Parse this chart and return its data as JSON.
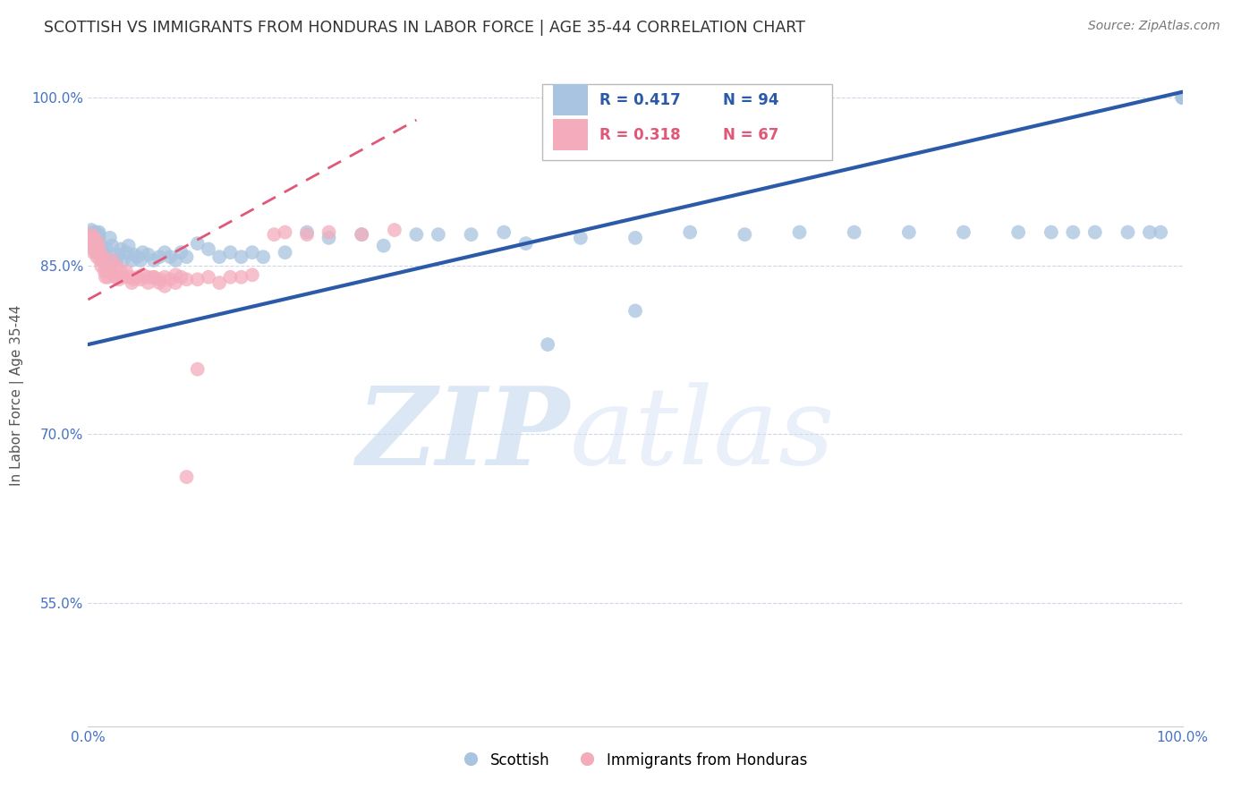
{
  "title": "SCOTTISH VS IMMIGRANTS FROM HONDURAS IN LABOR FORCE | AGE 35-44 CORRELATION CHART",
  "source": "Source: ZipAtlas.com",
  "ylabel": "In Labor Force | Age 35-44",
  "xlim": [
    0.0,
    1.0
  ],
  "ylim": [
    0.44,
    1.03
  ],
  "yticks": [
    0.55,
    0.7,
    0.85,
    1.0
  ],
  "ytick_labels": [
    "55.0%",
    "70.0%",
    "85.0%",
    "100.0%"
  ],
  "xticks": [
    0.0,
    0.1,
    0.2,
    0.3,
    0.4,
    0.5,
    0.6,
    0.7,
    0.8,
    0.9,
    1.0
  ],
  "xtick_labels": [
    "0.0%",
    "",
    "",
    "",
    "",
    "",
    "",
    "",
    "",
    "",
    "100.0%"
  ],
  "blue_color": "#A8C4E0",
  "pink_color": "#F4ACBC",
  "blue_line_color": "#2B5BA8",
  "pink_line_color": "#E05878",
  "R_blue": 0.417,
  "N_blue": 94,
  "R_pink": 0.318,
  "N_pink": 67,
  "legend_label_blue": "Scottish",
  "legend_label_pink": "Immigrants from Honduras",
  "watermark_zip": "ZIP",
  "watermark_atlas": "atlas",
  "title_color": "#333333",
  "axis_label_color": "#555555",
  "tick_label_color": "#4472C4",
  "grid_color": "#C8D4E8",
  "blue_line_x": [
    0.0,
    1.0
  ],
  "blue_line_y": [
    0.78,
    1.005
  ],
  "pink_line_x": [
    0.0,
    0.3
  ],
  "pink_line_y": [
    0.82,
    0.98
  ],
  "blue_scatter_x": [
    0.002,
    0.003,
    0.003,
    0.004,
    0.004,
    0.005,
    0.005,
    0.005,
    0.005,
    0.006,
    0.006,
    0.007,
    0.007,
    0.007,
    0.008,
    0.008,
    0.008,
    0.009,
    0.009,
    0.01,
    0.01,
    0.01,
    0.011,
    0.012,
    0.012,
    0.013,
    0.014,
    0.015,
    0.015,
    0.016,
    0.017,
    0.018,
    0.02,
    0.022,
    0.025,
    0.026,
    0.028,
    0.03,
    0.032,
    0.035,
    0.037,
    0.04,
    0.042,
    0.045,
    0.048,
    0.05,
    0.055,
    0.06,
    0.065,
    0.07,
    0.075,
    0.08,
    0.085,
    0.09,
    0.1,
    0.11,
    0.12,
    0.13,
    0.14,
    0.15,
    0.16,
    0.18,
    0.2,
    0.22,
    0.25,
    0.27,
    0.3,
    0.32,
    0.35,
    0.38,
    0.4,
    0.45,
    0.5,
    0.55,
    0.6,
    0.65,
    0.7,
    0.75,
    0.8,
    0.85,
    0.88,
    0.9,
    0.92,
    0.95,
    0.97,
    0.98,
    1.0,
    1.0,
    1.0,
    1.0,
    1.0,
    1.0,
    0.5,
    0.42
  ],
  "blue_scatter_y": [
    0.875,
    0.878,
    0.882,
    0.87,
    0.875,
    0.865,
    0.872,
    0.88,
    0.868,
    0.876,
    0.87,
    0.88,
    0.878,
    0.875,
    0.862,
    0.868,
    0.875,
    0.87,
    0.872,
    0.88,
    0.875,
    0.878,
    0.86,
    0.862,
    0.868,
    0.858,
    0.862,
    0.855,
    0.86,
    0.855,
    0.865,
    0.855,
    0.875,
    0.868,
    0.855,
    0.855,
    0.86,
    0.865,
    0.855,
    0.862,
    0.868,
    0.855,
    0.86,
    0.858,
    0.855,
    0.862,
    0.86,
    0.855,
    0.858,
    0.862,
    0.858,
    0.855,
    0.862,
    0.858,
    0.87,
    0.865,
    0.858,
    0.862,
    0.858,
    0.862,
    0.858,
    0.862,
    0.88,
    0.875,
    0.878,
    0.868,
    0.878,
    0.878,
    0.878,
    0.88,
    0.87,
    0.875,
    0.875,
    0.88,
    0.878,
    0.88,
    0.88,
    0.88,
    0.88,
    0.88,
    0.88,
    0.88,
    0.88,
    0.88,
    0.88,
    0.88,
    1.0,
    1.0,
    1.0,
    1.0,
    1.0,
    1.0,
    0.81,
    0.78
  ],
  "pink_scatter_x": [
    0.002,
    0.003,
    0.003,
    0.004,
    0.004,
    0.005,
    0.005,
    0.006,
    0.006,
    0.007,
    0.007,
    0.008,
    0.008,
    0.009,
    0.01,
    0.01,
    0.011,
    0.012,
    0.013,
    0.014,
    0.015,
    0.016,
    0.017,
    0.018,
    0.02,
    0.021,
    0.022,
    0.023,
    0.025,
    0.026,
    0.028,
    0.03,
    0.032,
    0.035,
    0.038,
    0.04,
    0.042,
    0.045,
    0.048,
    0.05,
    0.055,
    0.06,
    0.065,
    0.07,
    0.075,
    0.08,
    0.085,
    0.09,
    0.1,
    0.11,
    0.12,
    0.13,
    0.14,
    0.15,
    0.17,
    0.18,
    0.2,
    0.22,
    0.25,
    0.28,
    0.1,
    0.09,
    0.08,
    0.07,
    0.065,
    0.06,
    0.055
  ],
  "pink_scatter_y": [
    0.875,
    0.878,
    0.872,
    0.87,
    0.875,
    0.862,
    0.868,
    0.872,
    0.875,
    0.865,
    0.868,
    0.858,
    0.862,
    0.87,
    0.862,
    0.865,
    0.855,
    0.85,
    0.855,
    0.858,
    0.845,
    0.84,
    0.848,
    0.84,
    0.845,
    0.848,
    0.855,
    0.842,
    0.84,
    0.85,
    0.838,
    0.845,
    0.84,
    0.845,
    0.84,
    0.835,
    0.838,
    0.84,
    0.838,
    0.842,
    0.84,
    0.84,
    0.835,
    0.84,
    0.838,
    0.842,
    0.84,
    0.838,
    0.838,
    0.84,
    0.835,
    0.84,
    0.84,
    0.842,
    0.878,
    0.88,
    0.878,
    0.88,
    0.878,
    0.882,
    0.758,
    0.662,
    0.835,
    0.832,
    0.838,
    0.84,
    0.835
  ]
}
